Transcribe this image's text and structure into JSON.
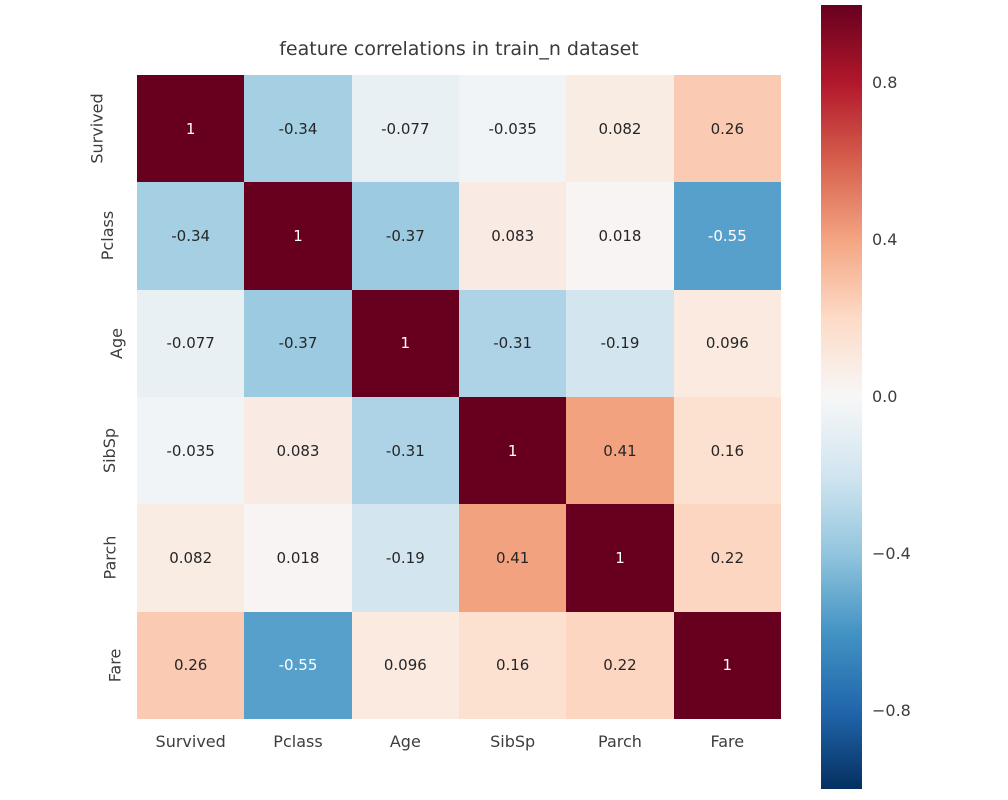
{
  "chart_data": {
    "type": "heatmap",
    "title": "feature correlations in train_n dataset",
    "categories": [
      "Survived",
      "Pclass",
      "Age",
      "SibSp",
      "Parch",
      "Fare"
    ],
    "matrix": [
      [
        1,
        -0.34,
        -0.077,
        -0.035,
        0.082,
        0.26
      ],
      [
        -0.34,
        1,
        -0.37,
        0.083,
        0.018,
        -0.55
      ],
      [
        -0.077,
        -0.37,
        1,
        -0.31,
        -0.19,
        0.096
      ],
      [
        -0.035,
        0.083,
        -0.31,
        1,
        0.41,
        0.16
      ],
      [
        0.082,
        0.018,
        -0.19,
        0.41,
        1,
        0.22
      ],
      [
        0.26,
        -0.55,
        0.096,
        0.16,
        0.22,
        1
      ]
    ],
    "cell_labels": [
      [
        "1",
        "-0.34",
        "-0.077",
        "-0.035",
        "0.082",
        "0.26"
      ],
      [
        "-0.34",
        "1",
        "-0.37",
        "0.083",
        "0.018",
        "-0.55"
      ],
      [
        "-0.077",
        "-0.37",
        "1",
        "-0.31",
        "-0.19",
        "0.096"
      ],
      [
        "-0.035",
        "0.083",
        "-0.31",
        "1",
        "0.41",
        "0.16"
      ],
      [
        "0.082",
        "0.018",
        "-0.19",
        "0.41",
        "1",
        "0.22"
      ],
      [
        "0.26",
        "-0.55",
        "0.096",
        "0.16",
        "0.22",
        "1"
      ]
    ],
    "colormap": "RdBu_r",
    "vmin": -1,
    "vmax": 1,
    "colorbar_ticks": {
      "values": [
        0.8,
        0.4,
        0.0,
        -0.4,
        -0.8
      ],
      "labels": [
        "0.8",
        "0.4",
        "0.0",
        "−0.4",
        "−0.8"
      ]
    },
    "colormap_anchors_low_to_high": [
      "#053061",
      "#2166ac",
      "#4393c4",
      "#92c5de",
      "#d1e5f0",
      "#f7f7f7",
      "#fddbc7",
      "#f4a582",
      "#d6604d",
      "#b2182b",
      "#67001f"
    ],
    "legend_position": "right",
    "grid": false,
    "colors": {
      "background": "#ffffff",
      "annotation_text_dark": "#262626",
      "annotation_text_light": "#ffffff",
      "tick_text": "#3d3d3d",
      "title_text": "#3a3a3a"
    }
  }
}
